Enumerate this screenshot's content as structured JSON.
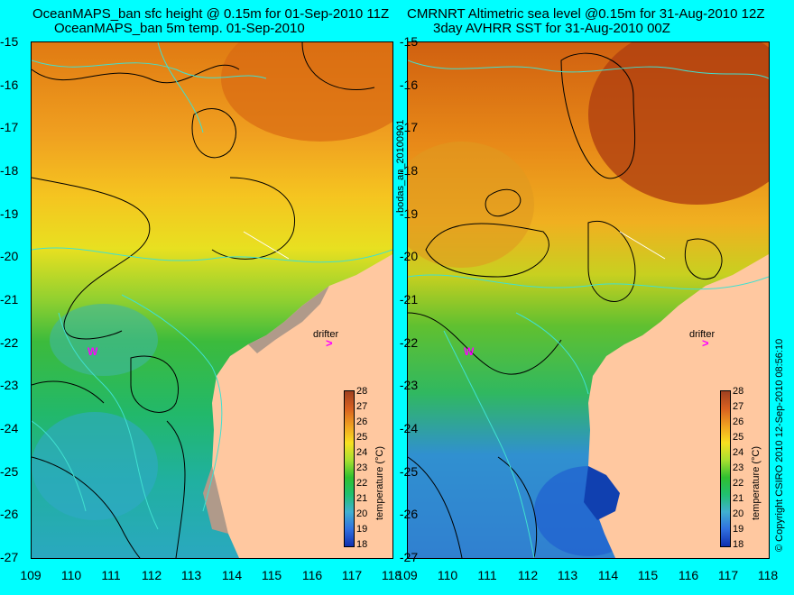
{
  "titles": {
    "left_line1": "OceanMAPS_ban sfc height @ 0.15m for 01-Sep-2010 11Z",
    "left_line2": "OceanMAPS_ban 5m temp. 01-Sep-2010",
    "right_line1": "CMRNRT Altimetric sea level  @0.15m  for 31-Aug-2010 12Z",
    "right_line2": "3day AVHRR SST for 31-Aug-2010 00Z"
  },
  "axes": {
    "y_ticks": [
      "-15",
      "-16",
      "-17",
      "-18",
      "-19",
      "-20",
      "-21",
      "-22",
      "-23",
      "-24",
      "-25",
      "-26",
      "-27"
    ],
    "x_ticks": [
      "109",
      "110",
      "111",
      "112",
      "113",
      "114",
      "115",
      "116",
      "117",
      "118"
    ]
  },
  "side_text": {
    "middle": "bodas_an_20100901",
    "right": "© Copyright CSIRO 2010   12-Sep-2010 08:56:10"
  },
  "colorbar": {
    "ticks": [
      "28",
      "27",
      "26",
      "25",
      "24",
      "23",
      "22",
      "21",
      "20",
      "19",
      "18"
    ],
    "title": "temperature (°C)"
  },
  "markers": {
    "drifter_label": "drifter",
    "drifter_arrow": ">",
    "w_marker": "W"
  }
}
